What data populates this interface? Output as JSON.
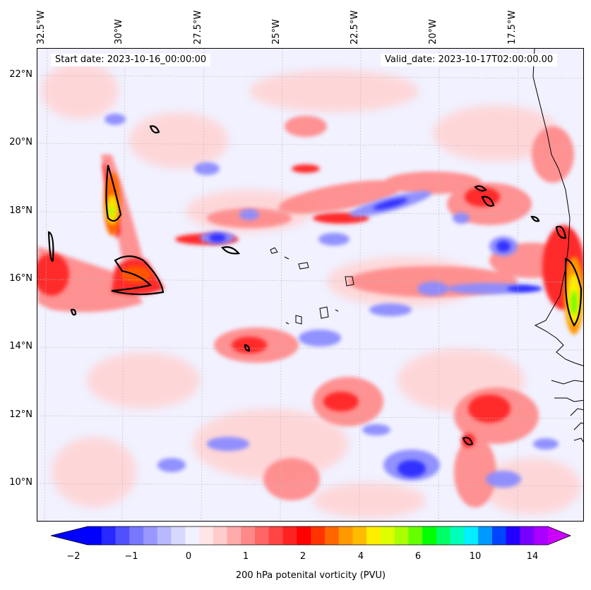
{
  "map": {
    "start_date": "Start date: 2023-10-16_00:00:00",
    "valid_date": "Valid_date: 2023-10-17T02:00:00.00",
    "longitude_labels": [
      "32.5°W",
      "30°W",
      "27.5°W",
      "25°W",
      "22.5°W",
      "20°W",
      "17.5°W"
    ],
    "latitude_labels": [
      "22°N",
      "20°N",
      "18°N",
      "16°N",
      "14°N",
      "12°N",
      "10°N"
    ],
    "colors": {
      "contour_line": "#000000",
      "coastline": "#000000",
      "gridline": "#bbbbbb"
    }
  },
  "colorbar": {
    "label": "200 hPa potenital vorticity (PVU)",
    "tick_labels": [
      "−2",
      "−1",
      "0",
      "1",
      "2",
      "4",
      "6",
      "10",
      "14"
    ],
    "colors": [
      "#0000ff",
      "#2828ff",
      "#5050ff",
      "#7878ff",
      "#9898ff",
      "#b8b8ff",
      "#d8d8ff",
      "#f1f1ff",
      "#ffe6e6",
      "#ffcccc",
      "#ffaaaa",
      "#ff8888",
      "#ff6666",
      "#ff4444",
      "#ff2222",
      "#ff0000",
      "#ff3300",
      "#ff6600",
      "#ff9900",
      "#ffbb00",
      "#ffee00",
      "#ddff00",
      "#aaff00",
      "#66ff00",
      "#00ff00",
      "#00ff66",
      "#00ffbb",
      "#00eeff",
      "#0099ff",
      "#0044ff",
      "#2200ff",
      "#7700ff",
      "#aa00ff"
    ],
    "extend_low_color": "#0000ff",
    "extend_high_color": "#cc00ff"
  }
}
